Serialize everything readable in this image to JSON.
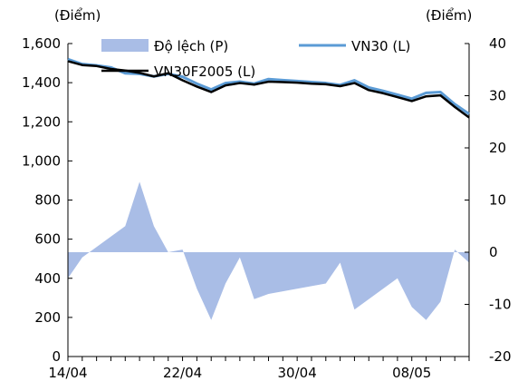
{
  "chart_data": {
    "type": "line",
    "left_unit": "(Điểm)",
    "right_unit": "(Điểm)",
    "x_tick_labels": [
      "14/04",
      "22/04",
      "30/04",
      "08/05"
    ],
    "left_axis": {
      "ylim": [
        0,
        1600
      ],
      "ticks": [
        "0",
        "200",
        "400",
        "600",
        "800",
        "1,000",
        "1,200",
        "1,400",
        "1,600"
      ]
    },
    "right_axis": {
      "ylim": [
        -20,
        40
      ],
      "ticks": [
        "-20",
        "-10",
        "0",
        "10",
        "20",
        "30",
        "40"
      ]
    },
    "x": [
      "14/04",
      "15/04",
      "16/04",
      "17/04",
      "18/04",
      "19/04",
      "20/04",
      "21/04",
      "22/04",
      "23/04",
      "24/04",
      "25/04",
      "26/04",
      "27/04",
      "28/04",
      "29/04",
      "30/04",
      "01/05",
      "02/05",
      "03/05",
      "04/05",
      "05/05",
      "06/05",
      "07/05",
      "08/05",
      "09/05",
      "10/05",
      "11/05",
      "12/05"
    ],
    "series": [
      {
        "name": "Độ lệch (P)",
        "axis": "right",
        "kind": "area",
        "color": "#a9bde6",
        "values": [
          -5,
          -1,
          1,
          3,
          5,
          13.5,
          5,
          0,
          0.5,
          -7,
          -13,
          -6,
          -1,
          -9,
          -8,
          -7.5,
          -7,
          -6.5,
          -6,
          -2,
          -11,
          -9,
          -7,
          -5,
          -10.5,
          -13,
          -9.5,
          0.5,
          -2
        ]
      },
      {
        "name": "VN30 (L)",
        "axis": "left",
        "kind": "line",
        "color": "#5b9bd5",
        "values": [
          1520,
          1495,
          1488,
          1478,
          1448,
          1445,
          1432,
          1445,
          1430,
          1395,
          1365,
          1398,
          1405,
          1395,
          1418,
          1413,
          1408,
          1403,
          1398,
          1388,
          1412,
          1375,
          1358,
          1338,
          1318,
          1348,
          1352,
          1290,
          1240
        ]
      },
      {
        "name": "VN30F2005 (L)",
        "axis": "left",
        "kind": "line",
        "color": "#000000",
        "values": [
          1510,
          1490,
          1485,
          1470,
          1462,
          1450,
          1432,
          1448,
          1412,
          1380,
          1352,
          1386,
          1398,
          1390,
          1405,
          1403,
          1400,
          1395,
          1392,
          1382,
          1398,
          1362,
          1346,
          1326,
          1306,
          1330,
          1335,
          1276,
          1222
        ]
      }
    ],
    "legend": {
      "placement": "top"
    },
    "grid": false
  }
}
